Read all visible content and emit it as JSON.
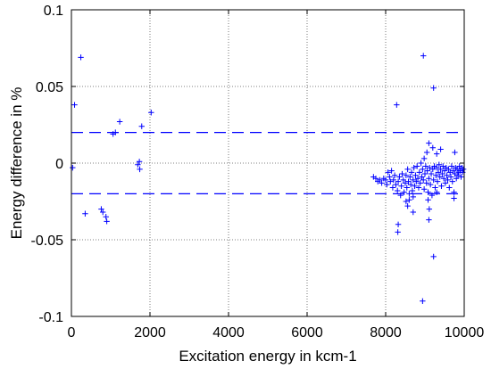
{
  "chart_data": {
    "type": "scatter",
    "xlabel": "Excitation energy in kcm-1",
    "ylabel": "Energy difference in %",
    "xlim": [
      0,
      10000
    ],
    "ylim": [
      -0.1,
      0.1
    ],
    "grid": true,
    "grid_style": "dotted",
    "marker": "+",
    "color": "#0000ff",
    "x_ticks": [
      0,
      2000,
      4000,
      6000,
      8000,
      10000
    ],
    "x_tick_labels": [
      "0",
      "2000",
      "4000",
      "6000",
      "8000",
      "10000"
    ],
    "y_ticks": [
      0.1,
      0.05,
      0,
      -0.05,
      -0.1
    ],
    "y_tick_labels": [
      "0.1",
      "0.05",
      "0",
      "-0.05",
      "-0.1"
    ],
    "reference_lines": [
      {
        "y": 0.02,
        "style": "dashed",
        "color": "#0000ff"
      },
      {
        "y": -0.02,
        "style": "dashed",
        "color": "#0000ff"
      }
    ],
    "points": [
      [
        80,
        0.038
      ],
      [
        30,
        -0.003
      ],
      [
        240,
        0.069
      ],
      [
        350,
        -0.033
      ],
      [
        760,
        -0.03
      ],
      [
        800,
        -0.032
      ],
      [
        880,
        -0.035
      ],
      [
        900,
        -0.038
      ],
      [
        1060,
        0.019
      ],
      [
        1120,
        0.02
      ],
      [
        1230,
        0.027
      ],
      [
        1690,
        -0.001
      ],
      [
        1730,
        0.001
      ],
      [
        1740,
        -0.004
      ],
      [
        1790,
        0.024
      ],
      [
        2030,
        0.033
      ],
      [
        7690,
        -0.009
      ],
      [
        7750,
        -0.01
      ],
      [
        7800,
        -0.012
      ],
      [
        7850,
        -0.011
      ],
      [
        7900,
        -0.013
      ],
      [
        7950,
        -0.01
      ],
      [
        8000,
        -0.011
      ],
      [
        8030,
        -0.014
      ],
      [
        8060,
        -0.006
      ],
      [
        8100,
        -0.009
      ],
      [
        8120,
        -0.012
      ],
      [
        8150,
        -0.005
      ],
      [
        8180,
        -0.016
      ],
      [
        8200,
        -0.011
      ],
      [
        8230,
        -0.008
      ],
      [
        8260,
        -0.014
      ],
      [
        8300,
        -0.018
      ],
      [
        8320,
        -0.012
      ],
      [
        8350,
        -0.009
      ],
      [
        8380,
        -0.021
      ],
      [
        8400,
        -0.015
      ],
      [
        8420,
        -0.007
      ],
      [
        8450,
        -0.011
      ],
      [
        8470,
        -0.019
      ],
      [
        8500,
        -0.013
      ],
      [
        8520,
        -0.008
      ],
      [
        8540,
        -0.016
      ],
      [
        8560,
        -0.004
      ],
      [
        8580,
        -0.012
      ],
      [
        8600,
        -0.02
      ],
      [
        8620,
        -0.009
      ],
      [
        8640,
        -0.014
      ],
      [
        8660,
        -0.006
      ],
      [
        8680,
        -0.018
      ],
      [
        8700,
        -0.011
      ],
      [
        8720,
        -0.003
      ],
      [
        8740,
        -0.015
      ],
      [
        8760,
        -0.008
      ],
      [
        8780,
        -0.012
      ],
      [
        8800,
        -0.002
      ],
      [
        8820,
        -0.01
      ],
      [
        8840,
        -0.016
      ],
      [
        8860,
        -0.006
      ],
      [
        8880,
        -0.013
      ],
      [
        8900,
        0.0
      ],
      [
        8920,
        -0.009
      ],
      [
        8940,
        -0.004
      ],
      [
        8960,
        -0.011
      ],
      [
        8980,
        -0.017
      ],
      [
        9000,
        -0.007
      ],
      [
        9020,
        -0.002
      ],
      [
        9040,
        -0.013
      ],
      [
        9060,
        -0.005
      ],
      [
        9080,
        -0.019
      ],
      [
        9100,
        -0.01
      ],
      [
        9120,
        -0.003
      ],
      [
        9140,
        -0.014
      ],
      [
        9160,
        -0.007
      ],
      [
        9180,
        -0.021
      ],
      [
        9200,
        -0.004
      ],
      [
        9220,
        -0.011
      ],
      [
        9240,
        -0.002
      ],
      [
        9260,
        -0.016
      ],
      [
        9280,
        -0.008
      ],
      [
        9300,
        -0.003
      ],
      [
        9320,
        -0.012
      ],
      [
        9340,
        -0.006
      ],
      [
        9360,
        -0.001
      ],
      [
        9380,
        -0.009
      ],
      [
        9400,
        -0.004
      ],
      [
        9420,
        -0.015
      ],
      [
        9440,
        -0.007
      ],
      [
        9460,
        -0.002
      ],
      [
        9480,
        -0.01
      ],
      [
        9500,
        -0.005
      ],
      [
        9520,
        -0.013
      ],
      [
        9540,
        -0.003
      ],
      [
        9560,
        -0.008
      ],
      [
        9580,
        -0.011
      ],
      [
        9600,
        -0.004
      ],
      [
        9620,
        -0.016
      ],
      [
        9640,
        -0.006
      ],
      [
        9660,
        -0.009
      ],
      [
        9680,
        -0.002
      ],
      [
        9700,
        -0.012
      ],
      [
        9720,
        -0.005
      ],
      [
        9740,
        -0.019
      ],
      [
        9760,
        -0.007
      ],
      [
        9780,
        -0.003
      ],
      [
        9800,
        -0.01
      ],
      [
        9820,
        -0.004
      ],
      [
        9840,
        -0.008
      ],
      [
        9860,
        -0.006
      ],
      [
        9880,
        -0.002
      ],
      [
        9900,
        -0.005
      ],
      [
        9920,
        -0.009
      ],
      [
        9940,
        -0.003
      ],
      [
        9960,
        -0.006
      ],
      [
        9980,
        -0.004
      ],
      [
        8600,
        -0.024
      ],
      [
        8700,
        -0.022
      ],
      [
        8520,
        -0.025
      ],
      [
        9080,
        -0.024
      ],
      [
        9300,
        -0.019
      ],
      [
        9740,
        -0.023
      ],
      [
        9760,
        0.007
      ],
      [
        9050,
        0.007
      ],
      [
        9100,
        0.013
      ],
      [
        9200,
        0.01
      ],
      [
        9400,
        0.009
      ],
      [
        8980,
        0.003
      ],
      [
        8320,
        -0.04
      ],
      [
        8310,
        -0.045
      ],
      [
        8280,
        0.038
      ],
      [
        8560,
        -0.028
      ],
      [
        8700,
        -0.032
      ],
      [
        9100,
        -0.037
      ],
      [
        9110,
        -0.03
      ],
      [
        9220,
        -0.061
      ],
      [
        8960,
        0.07
      ],
      [
        9220,
        0.049
      ],
      [
        8940,
        -0.09
      ],
      [
        9300,
        0.006
      ]
    ]
  }
}
